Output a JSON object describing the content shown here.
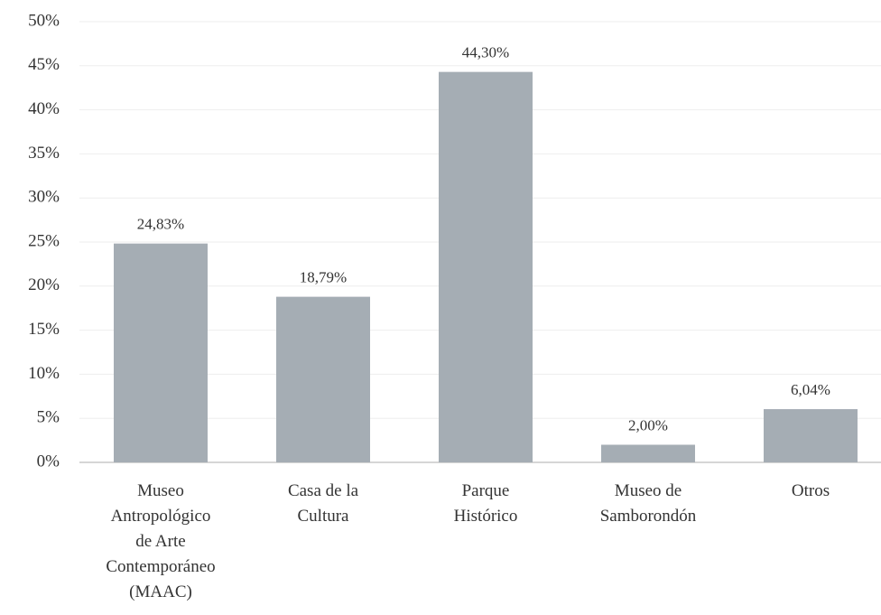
{
  "chart_data": {
    "type": "bar",
    "categories": [
      "Museo\nAntropológico\nde Arte\nContemporáneo\n(MAAC)",
      "Casa de la\nCultura",
      "Parque\nHistórico",
      "Museo de\nSamborondón",
      "Otros"
    ],
    "values": [
      24.83,
      18.79,
      44.3,
      2.0,
      6.04
    ],
    "value_labels": [
      "24,83%",
      "18,79%",
      "44,30%",
      "2,00%",
      "6,04%"
    ],
    "color": "#a5adb4",
    "ylim": [
      0,
      50
    ],
    "yticks": [
      {
        "value": 0,
        "label": "0%"
      },
      {
        "value": 5,
        "label": "5%"
      },
      {
        "value": 10,
        "label": "10%"
      },
      {
        "value": 15,
        "label": "15%"
      },
      {
        "value": 20,
        "label": "20%"
      },
      {
        "value": 25,
        "label": "25%"
      },
      {
        "value": 30,
        "label": "30%"
      },
      {
        "value": 35,
        "label": "35%"
      },
      {
        "value": 40,
        "label": "40%"
      },
      {
        "value": 45,
        "label": "45%"
      },
      {
        "value": 50,
        "label": "50%"
      }
    ],
    "grid": true
  }
}
